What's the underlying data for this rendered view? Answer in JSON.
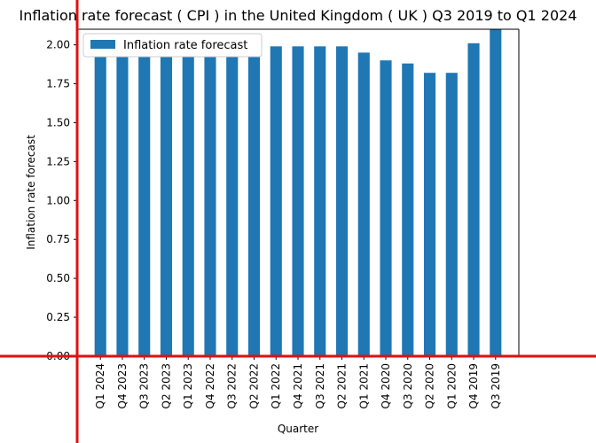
{
  "chart_data": {
    "type": "bar",
    "title": "Inflation rate forecast ( CPI ) in the United Kingdom ( UK ) Q3 2019 to Q1 2024",
    "xlabel": "Quarter",
    "ylabel": "Inflation rate forecast",
    "ylim": [
      0,
      2.1
    ],
    "yticks": [
      "0.00",
      "0.25",
      "0.50",
      "0.75",
      "1.00",
      "1.25",
      "1.50",
      "1.75",
      "2.00"
    ],
    "categories": [
      "Q1 2024",
      "Q4 2023",
      "Q3 2023",
      "Q2 2023",
      "Q1 2023",
      "Q4 2022",
      "Q3 2022",
      "Q2 2022",
      "Q1 2022",
      "Q4 2021",
      "Q3 2021",
      "Q2 2021",
      "Q1 2021",
      "Q4 2020",
      "Q3 2020",
      "Q2 2020",
      "Q1 2020",
      "Q4 2019",
      "Q3 2019"
    ],
    "series": [
      {
        "name": "Inflation rate forecast",
        "color": "#1f77b4",
        "values": [
          2.0,
          2.0,
          2.0,
          2.0,
          2.0,
          2.0,
          2.0,
          2.0,
          1.99,
          1.99,
          1.99,
          1.99,
          1.95,
          1.9,
          1.88,
          1.82,
          1.82,
          2.01,
          2.1
        ]
      }
    ],
    "legend": "top-left",
    "grid": false,
    "crosshair_color": "#dd1111"
  }
}
